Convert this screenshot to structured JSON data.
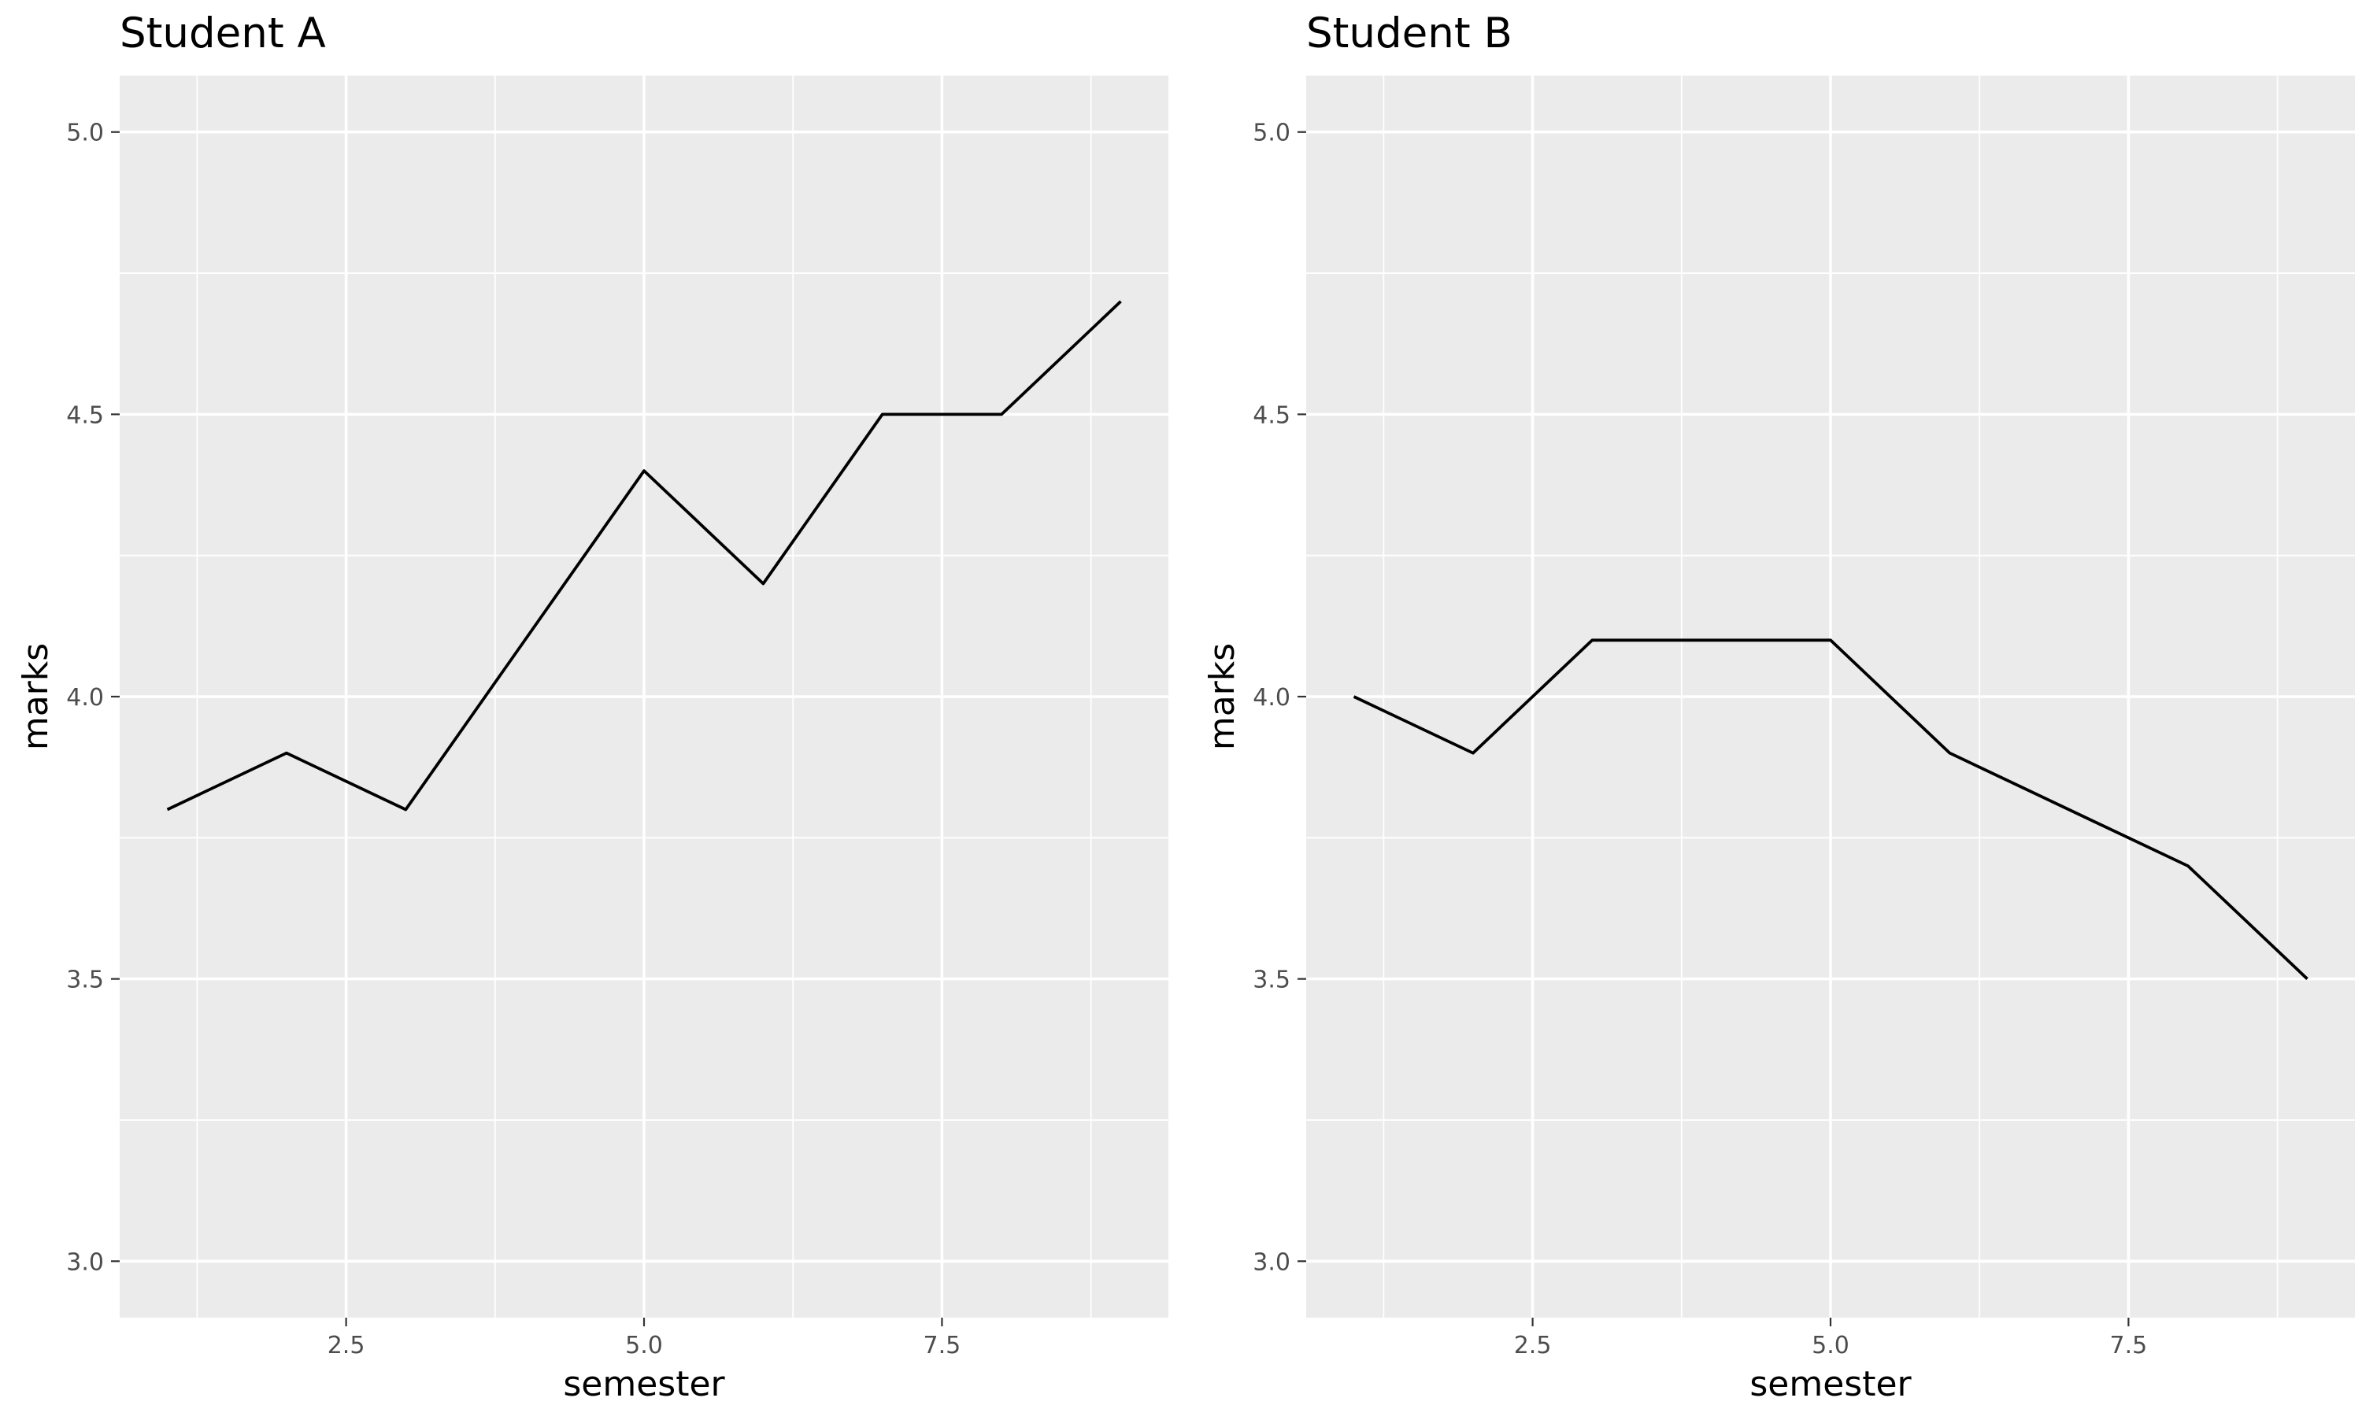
{
  "chart_data": [
    {
      "type": "line",
      "title": "Student A",
      "xlabel": "semester",
      "ylabel": "marks",
      "x": [
        1,
        2,
        3,
        4,
        5,
        6,
        7,
        8,
        9
      ],
      "series": [
        {
          "values": [
            3.8,
            3.9,
            3.8,
            4.1,
            4.4,
            4.2,
            4.5,
            4.5,
            4.7
          ]
        }
      ],
      "xlim": [
        0.6,
        9.4
      ],
      "ylim": [
        2.9,
        5.1
      ],
      "xticks": [
        2.5,
        5.0,
        7.5
      ],
      "xtick_labels": [
        "2.5",
        "5.0",
        "7.5"
      ],
      "yticks": [
        3.0,
        3.5,
        4.0,
        4.5,
        5.0
      ],
      "ytick_labels": [
        "3.0",
        "3.5",
        "4.0",
        "4.5",
        "5.0"
      ],
      "grid": true,
      "line_color": "#000000",
      "panel_color": "#ebebeb"
    },
    {
      "type": "line",
      "title": "Student B",
      "xlabel": "semester",
      "ylabel": "marks",
      "x": [
        1,
        2,
        3,
        4,
        5,
        6,
        7,
        8,
        9
      ],
      "series": [
        {
          "values": [
            4.0,
            3.9,
            4.1,
            4.1,
            4.1,
            3.9,
            3.8,
            3.7,
            3.5
          ]
        }
      ],
      "xlim": [
        0.6,
        9.4
      ],
      "ylim": [
        2.9,
        5.1
      ],
      "xticks": [
        2.5,
        5.0,
        7.5
      ],
      "xtick_labels": [
        "2.5",
        "5.0",
        "7.5"
      ],
      "yticks": [
        3.0,
        3.5,
        4.0,
        4.5,
        5.0
      ],
      "ytick_labels": [
        "3.0",
        "3.5",
        "4.0",
        "4.5",
        "5.0"
      ],
      "grid": true,
      "line_color": "#000000",
      "panel_color": "#ebebeb"
    }
  ]
}
